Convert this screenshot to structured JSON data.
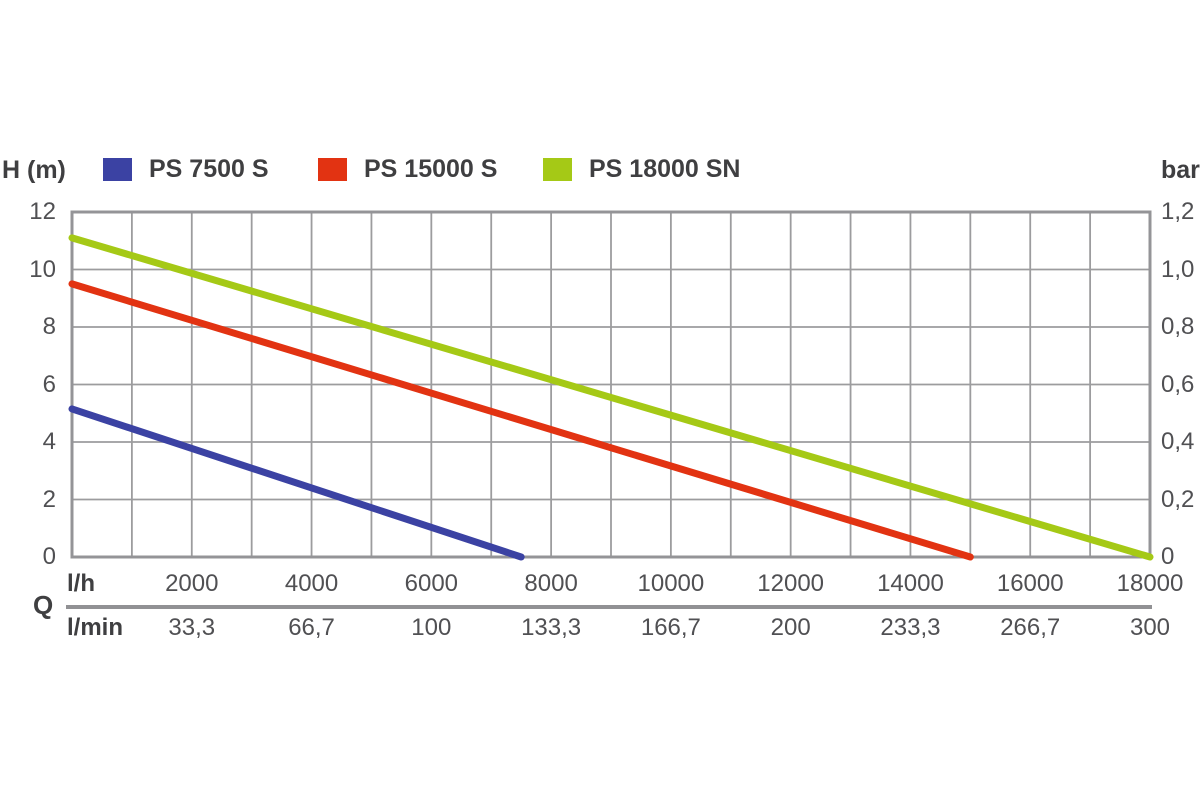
{
  "chart_data": {
    "type": "line",
    "title": "",
    "legend_position": "top",
    "grid": true,
    "axes": {
      "left": {
        "label": "H (m)",
        "ticks": [
          "12",
          "10",
          "8",
          "6",
          "4",
          "2",
          "0"
        ],
        "range": [
          0,
          12
        ]
      },
      "right": {
        "label": "bar",
        "ticks": [
          "1,2",
          "1,0",
          "0,8",
          "0,6",
          "0,4",
          "0,2",
          "0"
        ],
        "range": [
          0,
          1.2
        ]
      },
      "bottom_primary": {
        "label": "l/h",
        "ticks": [
          "2000",
          "4000",
          "6000",
          "8000",
          "10000",
          "12000",
          "14000",
          "16000",
          "18000"
        ],
        "tick_values": [
          2000,
          4000,
          6000,
          8000,
          10000,
          12000,
          14000,
          16000,
          18000
        ],
        "range": [
          0,
          18000
        ]
      },
      "bottom_secondary": {
        "label": "l/min",
        "ticks": [
          "33,3",
          "66,7",
          "100",
          "133,3",
          "166,7",
          "200",
          "233,3",
          "266,7",
          "300"
        ]
      },
      "quantity_label": "Q"
    },
    "series": [
      {
        "name": "PS 7500 S",
        "color": "#3B42A3",
        "points": [
          [
            0,
            5.15
          ],
          [
            7500,
            0
          ]
        ]
      },
      {
        "name": "PS 15000 S",
        "color": "#E23312",
        "points": [
          [
            0,
            9.5
          ],
          [
            15000,
            0
          ]
        ]
      },
      {
        "name": "PS 18000 SN",
        "color": "#A5C916",
        "points": [
          [
            0,
            11.1
          ],
          [
            18000,
            0
          ]
        ]
      }
    ],
    "grid_step": {
      "x_l_per_h": 1000,
      "y_m": 2
    },
    "colors": {
      "grid": "#9C9C9E",
      "border": "#949497",
      "tick_text": "#505053",
      "label_text": "#3F3F41",
      "divider": "#919194"
    }
  }
}
